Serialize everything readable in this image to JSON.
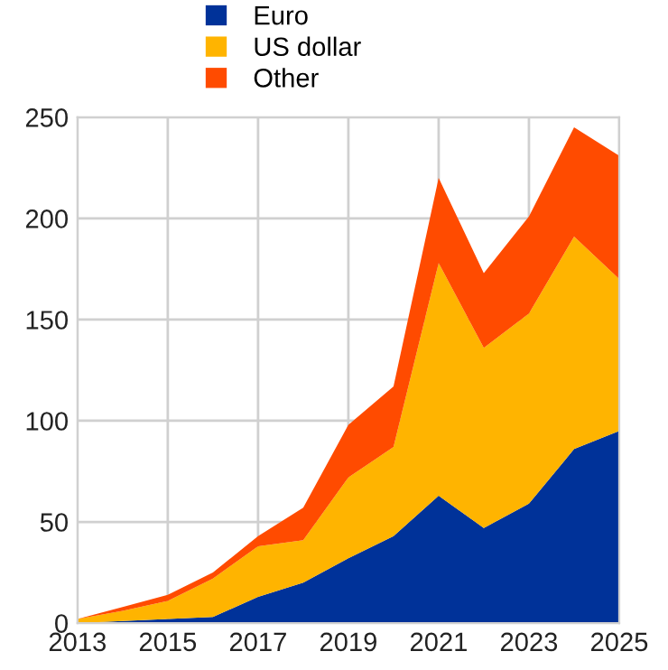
{
  "chart_data": {
    "type": "area",
    "stacked": true,
    "x": [
      2013,
      2014,
      2015,
      2016,
      2017,
      2018,
      2019,
      2020,
      2021,
      2022,
      2023,
      2024,
      2025
    ],
    "series": [
      {
        "name": "Euro",
        "color": "#003299",
        "values": [
          0,
          1,
          2,
          3,
          13,
          20,
          32,
          43,
          63,
          47,
          59,
          86,
          95
        ]
      },
      {
        "name": "US dollar",
        "color": "#ffb400",
        "values": [
          2,
          5,
          9,
          19,
          25,
          21,
          40,
          44,
          115,
          89,
          94,
          105,
          75
        ]
      },
      {
        "name": "Other",
        "color": "#ff4b00",
        "values": [
          0,
          2,
          3,
          3,
          5,
          16,
          26,
          30,
          42,
          37,
          48,
          54,
          61
        ]
      }
    ],
    "xlim": [
      2013,
      2025
    ],
    "xticks": [
      2013,
      2015,
      2017,
      2019,
      2021,
      2023,
      2025
    ],
    "ylim": [
      0,
      250
    ],
    "yticks": [
      0,
      50,
      100,
      150,
      200,
      250
    ],
    "grid": true,
    "legend": "top left"
  }
}
